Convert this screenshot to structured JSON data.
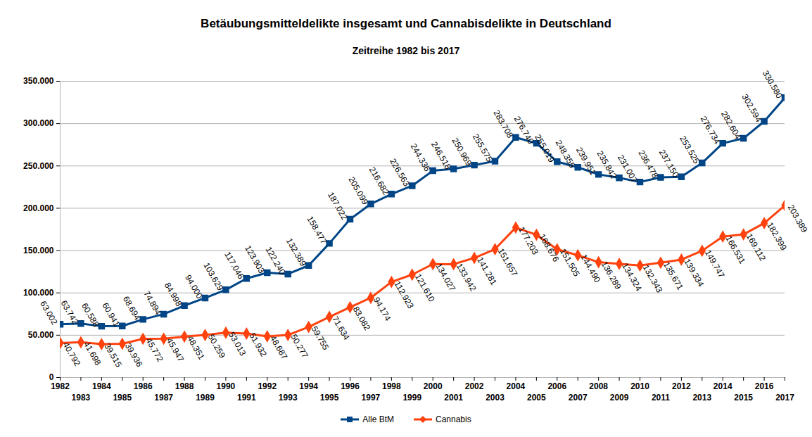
{
  "chart_data": {
    "type": "line",
    "title": "Betäubungsmitteldelikte insgesamt und Cannabisdelikte in Deutschland",
    "subtitle": "Zeitreihe 1982 bis 2017",
    "x": [
      1982,
      1983,
      1984,
      1985,
      1986,
      1987,
      1988,
      1989,
      1990,
      1991,
      1992,
      1993,
      1994,
      1995,
      1996,
      1997,
      1998,
      1999,
      2000,
      2001,
      2002,
      2003,
      2004,
      2005,
      2006,
      2007,
      2008,
      2009,
      2010,
      2011,
      2012,
      2013,
      2014,
      2015,
      2016,
      2017
    ],
    "xlim": [
      1982,
      2017
    ],
    "xticks": [
      1982,
      1983,
      1984,
      1985,
      1986,
      1987,
      1988,
      1989,
      1990,
      1991,
      1992,
      1993,
      1994,
      1995,
      1996,
      1997,
      1998,
      1999,
      2000,
      2001,
      2002,
      2003,
      2004,
      2005,
      2006,
      2007,
      2008,
      2009,
      2010,
      2011,
      2012,
      2013,
      2014,
      2015,
      2016,
      2017
    ],
    "ylim": [
      0,
      350000
    ],
    "yticks": [
      0,
      {
        "value": 50000,
        "label": "50.000"
      },
      {
        "value": 100000,
        "label": "100.000"
      },
      {
        "value": 150000,
        "label": "150.000"
      },
      {
        "value": 200000,
        "label": "200.000"
      },
      {
        "value": 250000,
        "label": "250.000"
      },
      {
        "value": 300000,
        "label": "300.000"
      },
      {
        "value": 350000,
        "label": "350.000"
      }
    ],
    "grid": true,
    "legend": "bottom",
    "data_labels": true,
    "series": [
      {
        "name": "Alle BtM",
        "color": "#004586",
        "marker": "square",
        "values": [
          63002,
          63742,
          60588,
          60941,
          68694,
          74894,
          84998,
          94000,
          103629,
          117046,
          123903,
          122240,
          132389,
          158477,
          187022,
          205099,
          216682,
          226563,
          244336,
          246518,
          250969,
          255575,
          283708,
          276740,
          255019,
          248355,
          239951,
          235842,
          231007,
          236478,
          237150,
          253525,
          276734,
          282604,
          302594,
          330580
        ],
        "value_labels": [
          "63.002",
          "63.742",
          "60.588",
          "60.941",
          "68.694",
          "74.894",
          "84.998",
          "94.000",
          "103.629",
          "117.046",
          "123.903",
          "122.240",
          "132.389",
          "158.477",
          "187.022",
          "205.099",
          "216.682",
          "226.563",
          "244.336",
          "246.518",
          "250.969",
          "255.575",
          "283.708",
          "276.740",
          "255.019",
          "248.355",
          "239.951",
          "235.842",
          "231.007",
          "236.478",
          "237.150",
          "253.525",
          "276.734",
          "282.604",
          "302.594",
          "330.580"
        ]
      },
      {
        "name": "Cannabis",
        "color": "#ff420e",
        "marker": "diamond",
        "values": [
          40792,
          41698,
          39515,
          39936,
          45772,
          45947,
          48351,
          50259,
          53013,
          51932,
          48687,
          50277,
          59755,
          71634,
          83082,
          94174,
          112923,
          121610,
          134027,
          133942,
          141281,
          151657,
          177203,
          168676,
          151505,
          144490,
          136289,
          134324,
          132343,
          135671,
          139334,
          149747,
          166531,
          169112,
          182399,
          203389
        ],
        "value_labels": [
          "40.792",
          "41.698",
          "39.515",
          "39.936",
          "45.772",
          "45.947",
          "48.351",
          "50.259",
          "53.013",
          "51.932",
          "48.687",
          "50.277",
          "59.755",
          "71.634",
          "83.082",
          "94.174",
          "112.923",
          "121.610",
          "134.027",
          "133.942",
          "141.281",
          "151.657",
          "177.203",
          "168.676",
          "151.505",
          "144.490",
          "136.289",
          "134.324",
          "132.343",
          "135.671",
          "139.334",
          "149.747",
          "166.531",
          "169.112",
          "182.399",
          "203.389"
        ]
      }
    ]
  }
}
